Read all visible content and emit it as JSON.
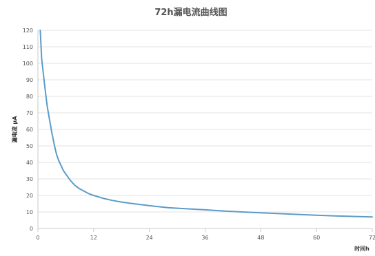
{
  "chart_data": {
    "type": "line",
    "title": "72h漏电流曲线图",
    "xlabel": "时间h",
    "ylabel": "漏电流 μA",
    "xlim": [
      0,
      72
    ],
    "ylim": [
      0,
      120
    ],
    "xticks": [
      0,
      12,
      24,
      36,
      48,
      60,
      72
    ],
    "yticks": [
      0,
      10,
      20,
      30,
      40,
      50,
      60,
      70,
      80,
      90,
      100,
      110,
      120
    ],
    "grid": true,
    "legend": "none",
    "series_color": "#5b9bc9",
    "series": [
      {
        "x": [
          0.5,
          0.8,
          1.2,
          1.6,
          2.0,
          2.5,
          3.0,
          3.5,
          4.0,
          4.5,
          5.0,
          5.5,
          6.0,
          7.0,
          8.0,
          9.0,
          10.0,
          11.0,
          12.0,
          14.0,
          16.0,
          18.0,
          20.0,
          24.0,
          28.0,
          32.0,
          36.0,
          40.0,
          44.0,
          48.0,
          52.0,
          56.0,
          60.0,
          64.0,
          68.0,
          72.0
        ],
        "values": [
          120,
          103,
          93,
          83,
          74,
          66,
          58,
          51,
          45,
          41,
          38,
          35,
          33,
          29,
          26,
          24,
          22.5,
          21,
          20,
          18.3,
          17,
          16,
          15.2,
          13.8,
          12.6,
          11.9,
          11.3,
          10.6,
          10.0,
          9.5,
          9.0,
          8.5,
          8.0,
          7.6,
          7.3,
          7.0
        ]
      }
    ]
  }
}
